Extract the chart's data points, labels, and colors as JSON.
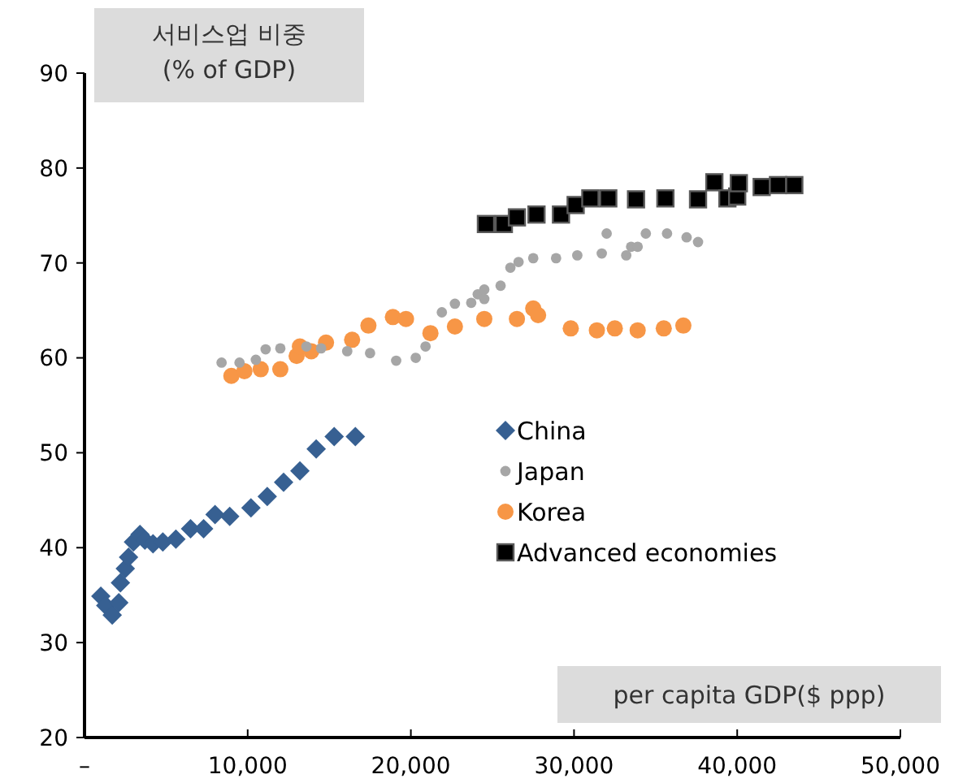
{
  "chart_data": {
    "type": "scatter",
    "ylabel": "서비스업 비중\n(% of GDP)",
    "xlabel": "per capita GDP($ ppp)",
    "xlim": [
      0,
      50000
    ],
    "xticks": [
      {
        "value": 0,
        "label": "–"
      },
      {
        "value": 10000,
        "label": "10,000"
      },
      {
        "value": 20000,
        "label": "20,000"
      },
      {
        "value": 30000,
        "label": "30,000"
      },
      {
        "value": 40000,
        "label": "40,000"
      },
      {
        "value": 50000,
        "label": "50,000"
      }
    ],
    "ylim": [
      20,
      90
    ],
    "yticks": [
      20,
      30,
      40,
      50,
      60,
      70,
      80,
      90
    ],
    "grid": false,
    "legend": "center",
    "series": [
      {
        "name": "China",
        "color": "#376092",
        "marker": "diamond",
        "x": [
          1000,
          1300,
          1700,
          2100,
          2200,
          2500,
          2700,
          3000,
          3400,
          3700,
          4200,
          4800,
          5600,
          6500,
          7300,
          8000,
          8900,
          10200,
          11200,
          12200,
          13200,
          14200,
          15300,
          16600
        ],
        "values": [
          34.9,
          33.9,
          32.9,
          34.2,
          36.3,
          37.8,
          39.0,
          40.6,
          41.4,
          40.8,
          40.4,
          40.6,
          40.9,
          42.0,
          42.0,
          43.5,
          43.3,
          44.2,
          45.4,
          46.9,
          48.1,
          50.4,
          51.7,
          51.7
        ]
      },
      {
        "name": "Japan",
        "color": "#a6a6a6",
        "marker": "circle",
        "x": [
          8400,
          9500,
          10500,
          11100,
          12000,
          13600,
          14500,
          16100,
          17500,
          19100,
          20300,
          20900,
          21900,
          22700,
          23700,
          24100,
          24500,
          24500,
          25500,
          26100,
          26600,
          27500,
          28900,
          30200,
          31700,
          32000,
          33200,
          33500,
          33900,
          34400,
          35700,
          36900,
          37600
        ],
        "values": [
          59.5,
          59.5,
          59.8,
          60.9,
          61.0,
          61.2,
          61.0,
          60.7,
          60.5,
          59.7,
          60.0,
          61.2,
          64.8,
          65.7,
          65.8,
          66.7,
          66.2,
          67.2,
          67.6,
          69.5,
          70.1,
          70.5,
          70.5,
          70.8,
          71.0,
          73.1,
          70.8,
          71.7,
          71.7,
          73.1,
          73.1,
          72.7,
          72.2
        ]
      },
      {
        "name": "Korea",
        "color": "#f79646",
        "marker": "circle",
        "x": [
          9000,
          9800,
          10800,
          12000,
          13000,
          13200,
          13900,
          14800,
          16400,
          17400,
          18900,
          19700,
          21200,
          22700,
          24500,
          26500,
          27500,
          27800,
          29800,
          31400,
          32500,
          33900,
          35500,
          36700
        ],
        "values": [
          58.1,
          58.6,
          58.8,
          58.8,
          60.2,
          61.2,
          60.7,
          61.6,
          61.9,
          63.4,
          64.3,
          64.1,
          62.6,
          63.3,
          64.1,
          64.1,
          65.2,
          64.5,
          63.1,
          62.9,
          63.1,
          62.9,
          63.1,
          63.4
        ]
      },
      {
        "name": "Advanced economies",
        "color": "#000000",
        "marker": "square",
        "x": [
          24600,
          25700,
          26500,
          27700,
          29200,
          30100,
          31000,
          32100,
          33800,
          35600,
          37600,
          38600,
          39400,
          40000,
          40100,
          41500,
          42500,
          43500
        ],
        "values": [
          74.1,
          74.1,
          74.8,
          75.1,
          75.1,
          76.1,
          76.8,
          76.8,
          76.7,
          76.8,
          76.7,
          78.5,
          76.8,
          77.0,
          78.4,
          78.0,
          78.2,
          78.2
        ]
      }
    ]
  }
}
